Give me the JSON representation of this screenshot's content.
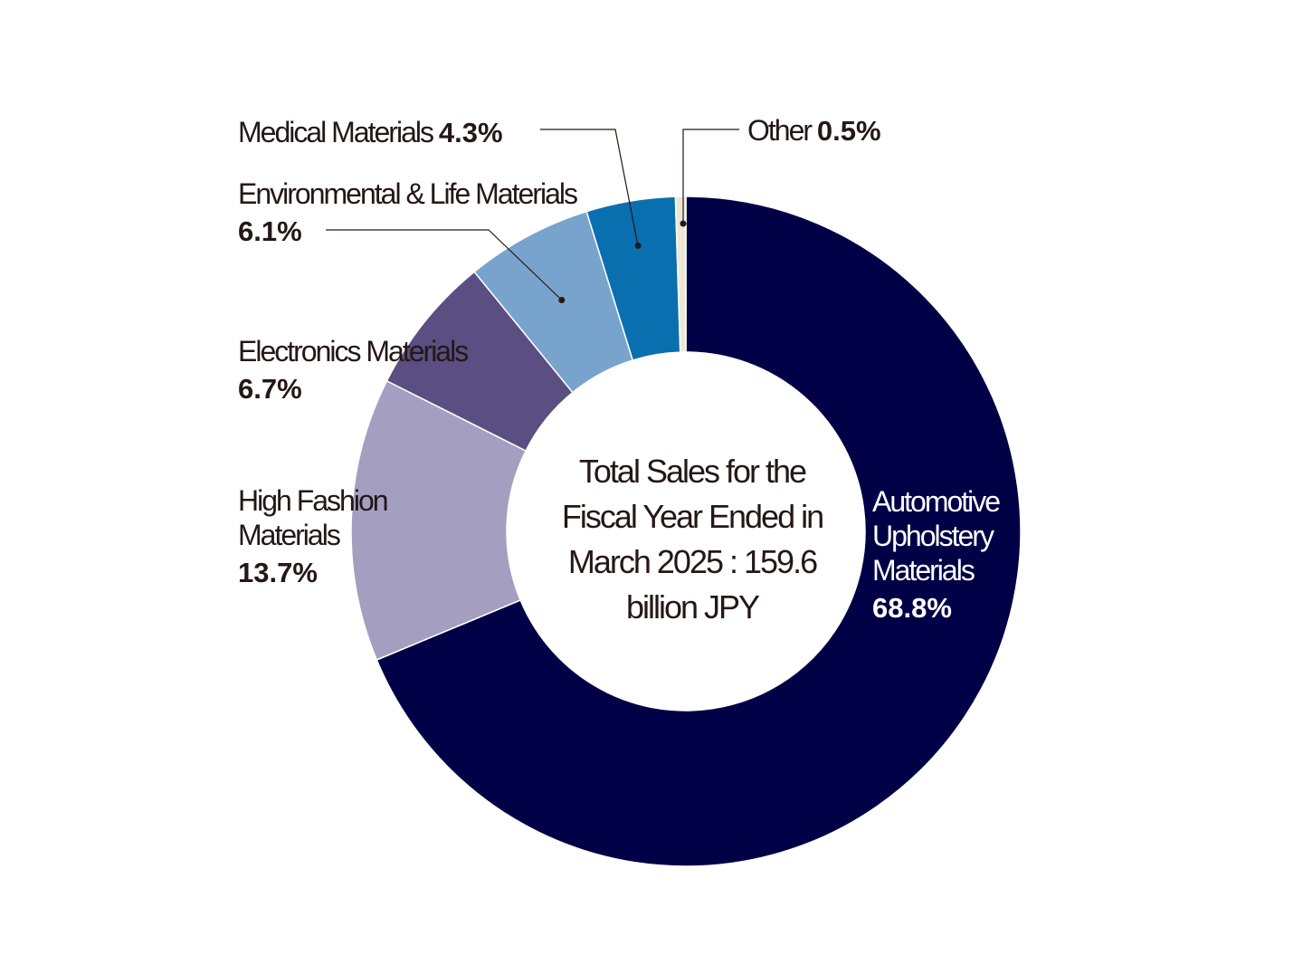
{
  "chart_data": {
    "type": "pie",
    "donut": true,
    "center_text": [
      "Total Sales for the",
      "Fiscal Year Ended in",
      "March 2025 : 159.6",
      "billion JPY"
    ],
    "series": [
      {
        "name": "Automotive Upholstery Materials",
        "name_lines": [
          "Automotive",
          "Upholstery",
          "Materials"
        ],
        "value": 68.8,
        "value_label": "68.8%",
        "color": "#000046"
      },
      {
        "name": "High Fashion Materials",
        "name_lines": [
          "High Fashion",
          "Materials"
        ],
        "value": 13.7,
        "value_label": "13.7%",
        "color": "#a49fc0"
      },
      {
        "name": "Electronics Materials",
        "name_lines": [
          "Electronics Materials"
        ],
        "value": 6.7,
        "value_label": "6.7%",
        "color": "#5a4e82"
      },
      {
        "name": "Environmental & Life Materials",
        "name_lines": [
          "Environmental & Life Materials"
        ],
        "value": 6.1,
        "value_label": "6.1%",
        "color": "#78a3cd"
      },
      {
        "name": "Medical Materials",
        "name_lines": [
          "Medical Materials"
        ],
        "value": 4.3,
        "value_label": "4.3%",
        "color": "#0a6fae"
      },
      {
        "name": "Other",
        "name_lines": [
          "Other"
        ],
        "value": 0.5,
        "value_label": "0.5%",
        "color": "#ede6d6"
      }
    ]
  }
}
